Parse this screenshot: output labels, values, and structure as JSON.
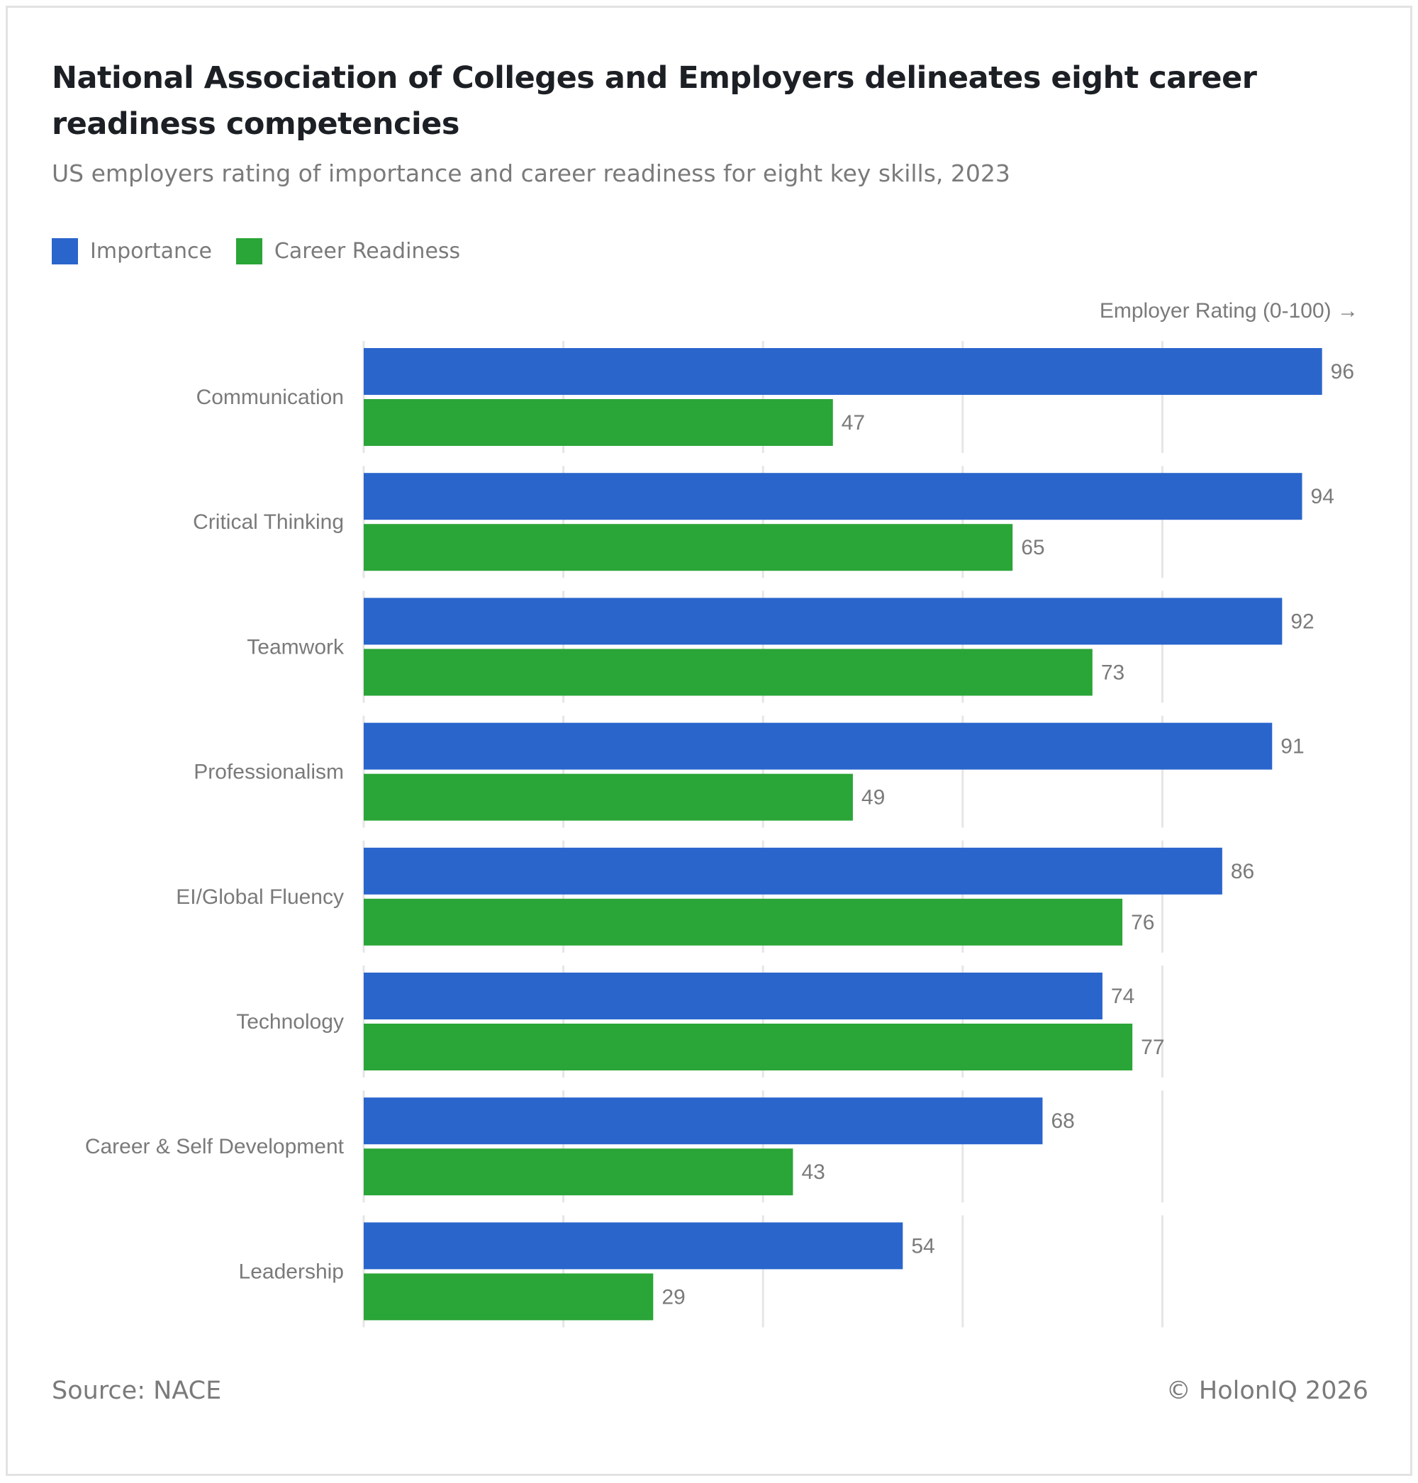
{
  "header": {
    "title": "National Association of Colleges and Employers delineates eight career readiness competencies",
    "subtitle": "US employers rating of importance and career readiness for eight key skills, 2023"
  },
  "legend": [
    {
      "label": "Importance",
      "color": "#2a65cc"
    },
    {
      "label": "Career Readiness",
      "color": "#2aa537"
    }
  ],
  "footer": {
    "source": "Source: NACE",
    "copyright": "© HolonIQ 2026"
  },
  "chart_data": {
    "type": "bar",
    "orientation": "horizontal",
    "title": "National Association of Colleges and Employers delineates eight career readiness competencies",
    "subtitle": "US employers rating of importance and career readiness for eight key skills, 2023",
    "xlabel": "Employer Rating (0-100) →",
    "ylabel": "",
    "xlim": [
      0,
      100
    ],
    "gridlines_at": [
      0,
      20,
      40,
      60,
      80
    ],
    "grid": true,
    "legend_position": "top-left",
    "categories": [
      "Communication",
      "Critical Thinking",
      "Teamwork",
      "Professionalism",
      "EI/Global Fluency",
      "Technology",
      "Career & Self Development",
      "Leadership"
    ],
    "series": [
      {
        "name": "Importance",
        "color": "#2a65cc",
        "values": [
          96,
          94,
          92,
          91,
          86,
          74,
          68,
          54
        ]
      },
      {
        "name": "Career Readiness",
        "color": "#2aa537",
        "values": [
          47,
          65,
          73,
          49,
          76,
          77,
          43,
          29
        ]
      }
    ]
  }
}
